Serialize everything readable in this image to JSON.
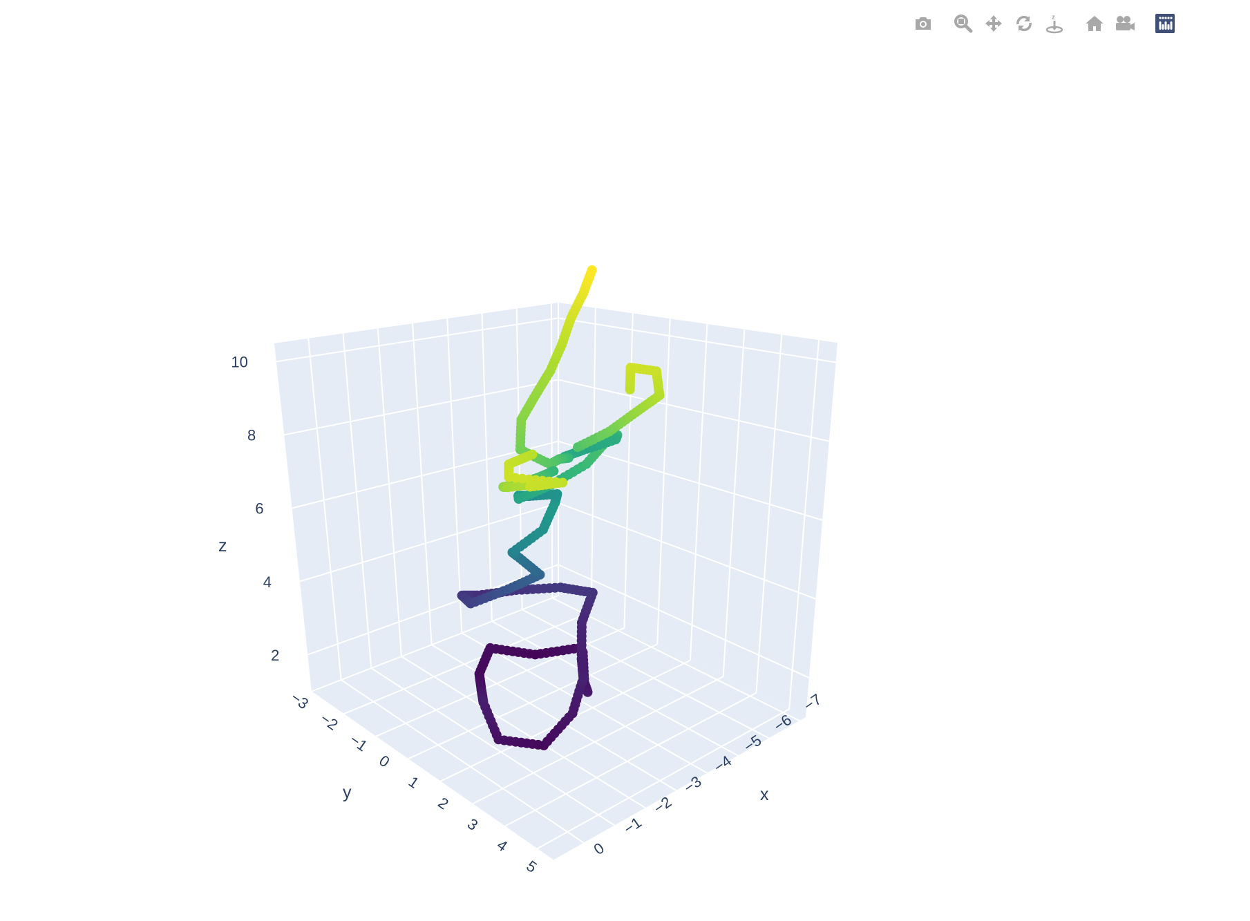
{
  "modebar": {
    "buttons": [
      {
        "name": "download-image-button",
        "icon": "camera-icon"
      },
      {
        "name": "zoom-button",
        "icon": "zoom-icon"
      },
      {
        "name": "pan-button",
        "icon": "pan-icon"
      },
      {
        "name": "orbit-rotation-button",
        "icon": "orbit-icon"
      },
      {
        "name": "turntable-rotation-button",
        "icon": "turntable-icon"
      },
      {
        "name": "reset-camera-button",
        "icon": "home-icon"
      },
      {
        "name": "last-saved-camera-button",
        "icon": "camera-video-icon"
      },
      {
        "name": "plotly-logo-link",
        "icon": "plotly-logo-icon"
      }
    ],
    "icon_color": "#a8a8a8",
    "logo_color": "#3f4f75"
  },
  "chart_data": {
    "type": "scatter3d",
    "mode": "lines+markers",
    "colorscale": "Viridis",
    "color_by": "z",
    "line_color": "#00008b",
    "background": "#e5ecf6",
    "grid_color": "#ffffff",
    "xlabel": "x",
    "ylabel": "y",
    "zlabel": "z",
    "x_ticks": [
      "0",
      "−1",
      "−2",
      "−3",
      "−4",
      "−5",
      "−6",
      "−7"
    ],
    "y_ticks": [
      "−3",
      "−2",
      "−1",
      "0",
      "1",
      "2",
      "3",
      "4",
      "5"
    ],
    "z_ticks": [
      "2",
      "4",
      "6",
      "8",
      "10"
    ],
    "xlim": [
      0,
      -7.5
    ],
    "ylim": [
      -3,
      5.2
    ],
    "zlim": [
      1,
      10.5
    ],
    "waypoints": [
      [
        -3.6,
        2.2,
        2.2
      ],
      [
        -4.0,
        1.6,
        2.0
      ],
      [
        -4.6,
        0.8,
        2.2
      ],
      [
        -5.0,
        0.2,
        1.9
      ],
      [
        -4.4,
        -0.6,
        1.6
      ],
      [
        -3.6,
        -1.2,
        1.8
      ],
      [
        -2.8,
        -0.6,
        1.7
      ],
      [
        -2.2,
        0.2,
        1.9
      ],
      [
        -1.6,
        1.0,
        2.2
      ],
      [
        -1.2,
        2.0,
        1.9
      ],
      [
        -2.0,
        2.6,
        1.7
      ],
      [
        -3.0,
        2.4,
        2.0
      ],
      [
        -3.8,
        1.8,
        2.3
      ],
      [
        -4.4,
        1.0,
        2.2
      ],
      [
        -5.2,
        0.0,
        2.4
      ],
      [
        -5.8,
        -0.4,
        2.8
      ],
      [
        -5.2,
        -0.8,
        3.0
      ],
      [
        -4.6,
        -1.6,
        2.8
      ],
      [
        -4.0,
        -2.2,
        2.6
      ],
      [
        -3.4,
        -2.0,
        2.9
      ],
      [
        -3.0,
        -1.2,
        3.2
      ],
      [
        -3.4,
        -0.4,
        3.8
      ],
      [
        -3.8,
        0.2,
        4.3
      ],
      [
        -3.3,
        0.0,
        4.9
      ],
      [
        -2.8,
        0.5,
        5.4
      ],
      [
        -3.4,
        0.8,
        5.9
      ],
      [
        -4.0,
        0.4,
        6.2
      ],
      [
        -4.5,
        -0.2,
        6.0
      ],
      [
        -4.2,
        -0.8,
        5.8
      ],
      [
        -3.6,
        -0.4,
        6.2
      ],
      [
        -3.1,
        0.3,
        6.6
      ],
      [
        -3.6,
        0.8,
        7.0
      ],
      [
        -4.3,
        1.1,
        7.4
      ],
      [
        -5.0,
        0.9,
        7.7
      ],
      [
        -5.6,
        0.4,
        7.4
      ],
      [
        -6.0,
        -0.2,
        6.9
      ],
      [
        -5.5,
        -0.7,
        6.6
      ],
      [
        -4.8,
        -0.4,
        6.8
      ],
      [
        -4.4,
        0.3,
        7.2
      ],
      [
        -3.8,
        0.8,
        7.6
      ],
      [
        -3.2,
        1.3,
        7.9
      ],
      [
        -2.7,
        0.9,
        8.3
      ],
      [
        -3.2,
        0.2,
        8.6
      ],
      [
        -3.9,
        -0.3,
        8.8
      ],
      [
        -4.6,
        -0.8,
        9.0
      ],
      [
        -5.2,
        -1.3,
        9.3
      ],
      [
        -5.8,
        -1.9,
        9.6
      ],
      [
        -6.4,
        -2.4,
        9.9
      ],
      [
        -6.9,
        -2.9,
        10.2
      ]
    ],
    "branches": [
      [
        [
          -3.8,
          0.6,
          7.2
        ],
        [
          -3.0,
          1.2,
          7.6
        ],
        [
          -2.2,
          1.6,
          7.9
        ],
        [
          -1.6,
          2.1,
          8.3
        ],
        [
          -1.1,
          2.6,
          8.7
        ],
        [
          -0.9,
          3.1,
          9.0
        ],
        [
          -1.3,
          3.7,
          9.2
        ],
        [
          -0.8,
          4.1,
          9.5
        ],
        [
          -1.5,
          4.3,
          9.4
        ],
        [
          -0.6,
          3.6,
          9.6
        ],
        [
          -1.0,
          3.0,
          9.5
        ],
        [
          -1.8,
          2.7,
          9.3
        ]
      ],
      [
        [
          -4.2,
          0.9,
          7.8
        ],
        [
          -4.6,
          1.5,
          8.3
        ],
        [
          -5.0,
          1.9,
          8.8
        ],
        [
          -5.4,
          2.2,
          9.2
        ],
        [
          -5.7,
          1.6,
          9.5
        ],
        [
          -5.3,
          1.2,
          9.6
        ],
        [
          -4.9,
          1.8,
          9.4
        ]
      ]
    ]
  }
}
